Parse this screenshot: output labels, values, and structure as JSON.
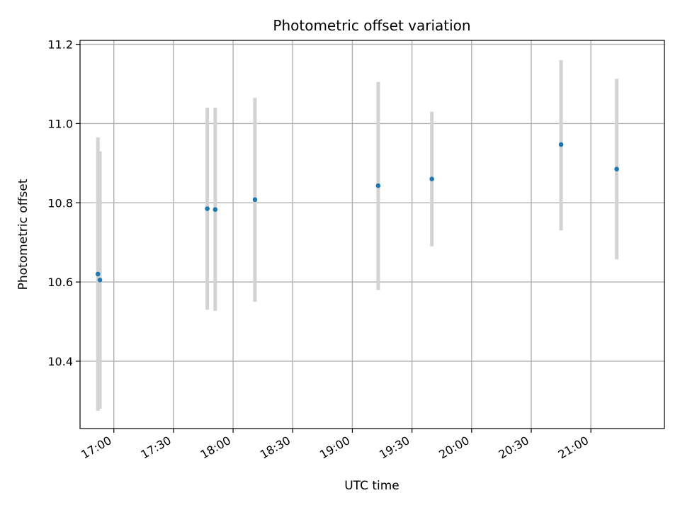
{
  "chart_data": {
    "type": "scatter",
    "title": "Photometric offset variation",
    "xlabel": "UTC time",
    "ylabel": "Photometric offset",
    "grid": true,
    "x_tick_labels": [
      "17:00",
      "17:30",
      "18:00",
      "18:30",
      "19:00",
      "19:30",
      "20:00",
      "20:30",
      "21:00"
    ],
    "y_tick_labels": [
      "10.4",
      "10.6",
      "10.8",
      "11.0",
      "11.2"
    ],
    "xlim": [
      "16:43",
      "21:37"
    ],
    "ylim": [
      10.23,
      11.21
    ],
    "marker_color": "#1f77b4",
    "errorbar_color": "#d3d3d3",
    "points": [
      {
        "x": "16:52",
        "y": 10.62,
        "yerr_low": 10.275,
        "yerr_high": 10.965
      },
      {
        "x": "16:53",
        "y": 10.605,
        "yerr_low": 10.28,
        "yerr_high": 10.93
      },
      {
        "x": "17:47",
        "y": 10.785,
        "yerr_low": 10.53,
        "yerr_high": 11.04
      },
      {
        "x": "17:51",
        "y": 10.783,
        "yerr_low": 10.527,
        "yerr_high": 11.04
      },
      {
        "x": "18:11",
        "y": 10.808,
        "yerr_low": 10.55,
        "yerr_high": 11.065
      },
      {
        "x": "19:13",
        "y": 10.843,
        "yerr_low": 10.58,
        "yerr_high": 11.105
      },
      {
        "x": "19:40",
        "y": 10.86,
        "yerr_low": 10.69,
        "yerr_high": 11.03
      },
      {
        "x": "20:45",
        "y": 10.947,
        "yerr_low": 10.73,
        "yerr_high": 11.16
      },
      {
        "x": "21:13",
        "y": 10.885,
        "yerr_low": 10.657,
        "yerr_high": 11.113
      }
    ]
  }
}
